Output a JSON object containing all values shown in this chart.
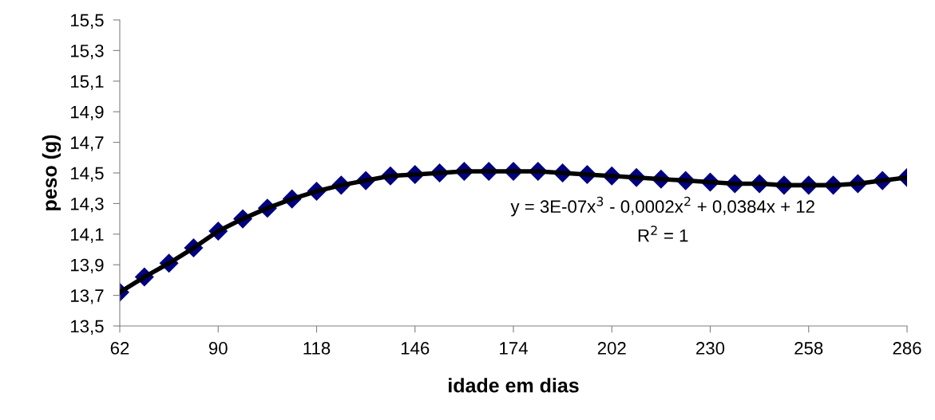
{
  "chart_data": {
    "type": "scatter",
    "xlabel": "idade em dias",
    "ylabel": "peso (g)",
    "x": [
      62,
      69,
      76,
      83,
      90,
      97,
      104,
      111,
      118,
      125,
      132,
      139,
      146,
      153,
      160,
      167,
      174,
      181,
      188,
      195,
      202,
      209,
      216,
      223,
      230,
      237,
      244,
      251,
      258,
      265,
      272,
      279,
      286
    ],
    "series": [
      {
        "color": "#000080",
        "marker": "diamond",
        "values": [
          13.72,
          13.82,
          13.91,
          14.01,
          14.12,
          14.2,
          14.27,
          14.33,
          14.38,
          14.42,
          14.45,
          14.48,
          14.49,
          14.5,
          14.51,
          14.51,
          14.51,
          14.51,
          14.5,
          14.49,
          14.48,
          14.47,
          14.46,
          14.45,
          14.44,
          14.43,
          14.43,
          14.42,
          14.42,
          14.42,
          14.43,
          14.45,
          14.47
        ]
      },
      {
        "type": "line",
        "color": "#000000",
        "values": [
          13.72,
          13.82,
          13.91,
          14.01,
          14.12,
          14.2,
          14.27,
          14.33,
          14.38,
          14.42,
          14.45,
          14.48,
          14.49,
          14.5,
          14.51,
          14.51,
          14.51,
          14.51,
          14.5,
          14.49,
          14.48,
          14.47,
          14.46,
          14.45,
          14.44,
          14.43,
          14.43,
          14.42,
          14.42,
          14.42,
          14.43,
          14.45,
          14.47
        ]
      }
    ],
    "xlim": [
      62,
      286
    ],
    "xticks": [
      62,
      90,
      118,
      146,
      174,
      202,
      230,
      258,
      286
    ],
    "ylim": [
      13.5,
      15.5
    ],
    "yticks": [
      {
        "value": 13.5,
        "label": "13,5"
      },
      {
        "value": 13.7,
        "label": "13,7"
      },
      {
        "value": 13.9,
        "label": "13,9"
      },
      {
        "value": 14.1,
        "label": "14,1"
      },
      {
        "value": 14.3,
        "label": "14,3"
      },
      {
        "value": 14.5,
        "label": "14,5"
      },
      {
        "value": 14.7,
        "label": "14,7"
      },
      {
        "value": 14.9,
        "label": "14,9"
      },
      {
        "value": 15.1,
        "label": "15,1"
      },
      {
        "value": 15.3,
        "label": "15,3"
      },
      {
        "value": 15.5,
        "label": "15,5"
      }
    ],
    "grid": false,
    "legend": false,
    "annotations": [
      "y = 3E-07x$^{3}$ - 0,0002x$^{2}$ + 0,0384x + 12",
      "R$^{2}$ = 1"
    ]
  }
}
